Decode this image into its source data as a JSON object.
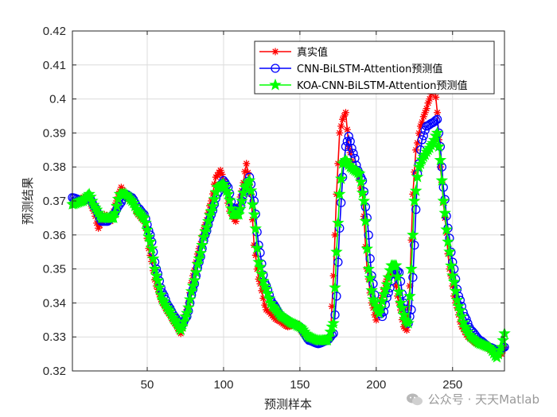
{
  "chart_data": {
    "type": "line",
    "title": "",
    "xlabel": "预测样本",
    "ylabel": "预测结果",
    "xlim": [
      1,
      284
    ],
    "ylim": [
      0.32,
      0.42
    ],
    "xticks": [
      50,
      100,
      150,
      200,
      250
    ],
    "yticks": [
      0.32,
      0.33,
      0.34,
      0.35,
      0.36,
      0.37,
      0.38,
      0.39,
      0.4,
      0.41,
      0.42
    ],
    "ytick_labels": [
      "0.32",
      "0.33",
      "0.34",
      "0.35",
      "0.36",
      "0.37",
      "0.38",
      "0.39",
      "0.4",
      "0.41",
      "0.42"
    ],
    "grid": true,
    "legend_position": "top-right",
    "anchors": {
      "true": [
        [
          1,
          0.369
        ],
        [
          8,
          0.371
        ],
        [
          12,
          0.37
        ],
        [
          15,
          0.367
        ],
        [
          18,
          0.362
        ],
        [
          22,
          0.366
        ],
        [
          26,
          0.364
        ],
        [
          30,
          0.37
        ],
        [
          33,
          0.374
        ],
        [
          36,
          0.371
        ],
        [
          40,
          0.37
        ],
        [
          44,
          0.366
        ],
        [
          48,
          0.364
        ],
        [
          52,
          0.354
        ],
        [
          56,
          0.345
        ],
        [
          60,
          0.34
        ],
        [
          64,
          0.337
        ],
        [
          68,
          0.334
        ],
        [
          72,
          0.331
        ],
        [
          76,
          0.338
        ],
        [
          80,
          0.348
        ],
        [
          84,
          0.356
        ],
        [
          88,
          0.363
        ],
        [
          92,
          0.37
        ],
        [
          95,
          0.377
        ],
        [
          98,
          0.379
        ],
        [
          101,
          0.375
        ],
        [
          104,
          0.367
        ],
        [
          108,
          0.364
        ],
        [
          112,
          0.373
        ],
        [
          115,
          0.381
        ],
        [
          118,
          0.372
        ],
        [
          120,
          0.357
        ],
        [
          123,
          0.347
        ],
        [
          128,
          0.338
        ],
        [
          135,
          0.335
        ],
        [
          142,
          0.333
        ],
        [
          148,
          0.334
        ],
        [
          152,
          0.331
        ],
        [
          158,
          0.329
        ],
        [
          164,
          0.329
        ],
        [
          170,
          0.33
        ],
        [
          172,
          0.348
        ],
        [
          174,
          0.372
        ],
        [
          176,
          0.39
        ],
        [
          178,
          0.394
        ],
        [
          180,
          0.396
        ],
        [
          182,
          0.386
        ],
        [
          185,
          0.38
        ],
        [
          188,
          0.378
        ],
        [
          191,
          0.372
        ],
        [
          194,
          0.35
        ],
        [
          197,
          0.34
        ],
        [
          200,
          0.335
        ],
        [
          203,
          0.341
        ],
        [
          207,
          0.347
        ],
        [
          211,
          0.35
        ],
        [
          215,
          0.34
        ],
        [
          218,
          0.333
        ],
        [
          220,
          0.332
        ],
        [
          222,
          0.345
        ],
        [
          224,
          0.372
        ],
        [
          226,
          0.385
        ],
        [
          229,
          0.392
        ],
        [
          232,
          0.396
        ],
        [
          235,
          0.4
        ],
        [
          238,
          0.405
        ],
        [
          240,
          0.396
        ],
        [
          242,
          0.38
        ],
        [
          245,
          0.365
        ],
        [
          248,
          0.35
        ],
        [
          252,
          0.34
        ],
        [
          256,
          0.333
        ],
        [
          260,
          0.33
        ],
        [
          266,
          0.328
        ],
        [
          272,
          0.327
        ],
        [
          278,
          0.325
        ],
        [
          282,
          0.325
        ],
        [
          284,
          0.327
        ]
      ],
      "cnn": [
        [
          1,
          0.371
        ],
        [
          8,
          0.37
        ],
        [
          12,
          0.371
        ],
        [
          16,
          0.368
        ],
        [
          20,
          0.364
        ],
        [
          24,
          0.364
        ],
        [
          28,
          0.366
        ],
        [
          32,
          0.369
        ],
        [
          36,
          0.372
        ],
        [
          40,
          0.371
        ],
        [
          44,
          0.368
        ],
        [
          48,
          0.366
        ],
        [
          52,
          0.36
        ],
        [
          56,
          0.35
        ],
        [
          60,
          0.343
        ],
        [
          64,
          0.339
        ],
        [
          68,
          0.336
        ],
        [
          72,
          0.333
        ],
        [
          76,
          0.336
        ],
        [
          80,
          0.344
        ],
        [
          84,
          0.352
        ],
        [
          88,
          0.36
        ],
        [
          92,
          0.366
        ],
        [
          96,
          0.372
        ],
        [
          100,
          0.376
        ],
        [
          103,
          0.374
        ],
        [
          106,
          0.368
        ],
        [
          110,
          0.367
        ],
        [
          114,
          0.373
        ],
        [
          117,
          0.377
        ],
        [
          120,
          0.37
        ],
        [
          123,
          0.357
        ],
        [
          127,
          0.346
        ],
        [
          132,
          0.34
        ],
        [
          138,
          0.336
        ],
        [
          145,
          0.334
        ],
        [
          150,
          0.333
        ],
        [
          156,
          0.329
        ],
        [
          162,
          0.328
        ],
        [
          168,
          0.329
        ],
        [
          172,
          0.331
        ],
        [
          174,
          0.342
        ],
        [
          176,
          0.362
        ],
        [
          178,
          0.377
        ],
        [
          180,
          0.386
        ],
        [
          182,
          0.389
        ],
        [
          185,
          0.384
        ],
        [
          188,
          0.379
        ],
        [
          191,
          0.376
        ],
        [
          194,
          0.365
        ],
        [
          197,
          0.348
        ],
        [
          200,
          0.34
        ],
        [
          204,
          0.336
        ],
        [
          208,
          0.343
        ],
        [
          212,
          0.35
        ],
        [
          215,
          0.349
        ],
        [
          218,
          0.34
        ],
        [
          221,
          0.334
        ],
        [
          223,
          0.338
        ],
        [
          225,
          0.357
        ],
        [
          227,
          0.378
        ],
        [
          230,
          0.388
        ],
        [
          233,
          0.392
        ],
        [
          237,
          0.393
        ],
        [
          240,
          0.394
        ],
        [
          242,
          0.386
        ],
        [
          244,
          0.374
        ],
        [
          247,
          0.362
        ],
        [
          250,
          0.352
        ],
        [
          254,
          0.342
        ],
        [
          258,
          0.336
        ],
        [
          262,
          0.332
        ],
        [
          268,
          0.329
        ],
        [
          274,
          0.327
        ],
        [
          280,
          0.326
        ],
        [
          284,
          0.327
        ]
      ],
      "koa": [
        [
          1,
          0.369
        ],
        [
          8,
          0.37
        ],
        [
          12,
          0.372
        ],
        [
          16,
          0.368
        ],
        [
          20,
          0.365
        ],
        [
          24,
          0.365
        ],
        [
          28,
          0.365
        ],
        [
          32,
          0.372
        ],
        [
          36,
          0.372
        ],
        [
          40,
          0.37
        ],
        [
          44,
          0.367
        ],
        [
          48,
          0.365
        ],
        [
          52,
          0.358
        ],
        [
          56,
          0.348
        ],
        [
          60,
          0.341
        ],
        [
          64,
          0.338
        ],
        [
          68,
          0.335
        ],
        [
          72,
          0.332
        ],
        [
          76,
          0.337
        ],
        [
          80,
          0.345
        ],
        [
          84,
          0.353
        ],
        [
          88,
          0.361
        ],
        [
          92,
          0.367
        ],
        [
          96,
          0.374
        ],
        [
          100,
          0.375
        ],
        [
          103,
          0.372
        ],
        [
          106,
          0.366
        ],
        [
          110,
          0.366
        ],
        [
          114,
          0.374
        ],
        [
          117,
          0.376
        ],
        [
          120,
          0.366
        ],
        [
          123,
          0.352
        ],
        [
          127,
          0.345
        ],
        [
          132,
          0.339
        ],
        [
          138,
          0.336
        ],
        [
          145,
          0.334
        ],
        [
          150,
          0.333
        ],
        [
          156,
          0.33
        ],
        [
          162,
          0.329
        ],
        [
          168,
          0.329
        ],
        [
          172,
          0.334
        ],
        [
          174,
          0.355
        ],
        [
          176,
          0.372
        ],
        [
          178,
          0.381
        ],
        [
          180,
          0.382
        ],
        [
          183,
          0.38
        ],
        [
          186,
          0.379
        ],
        [
          189,
          0.378
        ],
        [
          192,
          0.37
        ],
        [
          195,
          0.35
        ],
        [
          198,
          0.341
        ],
        [
          202,
          0.337
        ],
        [
          206,
          0.344
        ],
        [
          210,
          0.351
        ],
        [
          213,
          0.351
        ],
        [
          216,
          0.34
        ],
        [
          219,
          0.335
        ],
        [
          221,
          0.334
        ],
        [
          223,
          0.35
        ],
        [
          225,
          0.37
        ],
        [
          228,
          0.38
        ],
        [
          231,
          0.383
        ],
        [
          234,
          0.385
        ],
        [
          237,
          0.387
        ],
        [
          240,
          0.39
        ],
        [
          242,
          0.382
        ],
        [
          244,
          0.37
        ],
        [
          247,
          0.358
        ],
        [
          250,
          0.348
        ],
        [
          254,
          0.339
        ],
        [
          258,
          0.333
        ],
        [
          262,
          0.33
        ],
        [
          268,
          0.328
        ],
        [
          274,
          0.327
        ],
        [
          279,
          0.324
        ],
        [
          282,
          0.327
        ],
        [
          284,
          0.331
        ]
      ]
    },
    "series": [
      {
        "key": "true",
        "name": "真实值",
        "color": "#ff0000",
        "marker": "asterisk"
      },
      {
        "key": "cnn",
        "name": "CNN-BiLSTM-Attention预测值",
        "color": "#0000ff",
        "marker": "circle"
      },
      {
        "key": "koa",
        "name": "KOA-CNN-BiLSTM-Attention预测值",
        "color": "#00ff00",
        "marker": "pentagram"
      }
    ]
  },
  "watermark": {
    "text": "公众号 · 天天Matlab"
  },
  "colors": {
    "grid": "#dcdcdc",
    "axis": "#262626"
  }
}
